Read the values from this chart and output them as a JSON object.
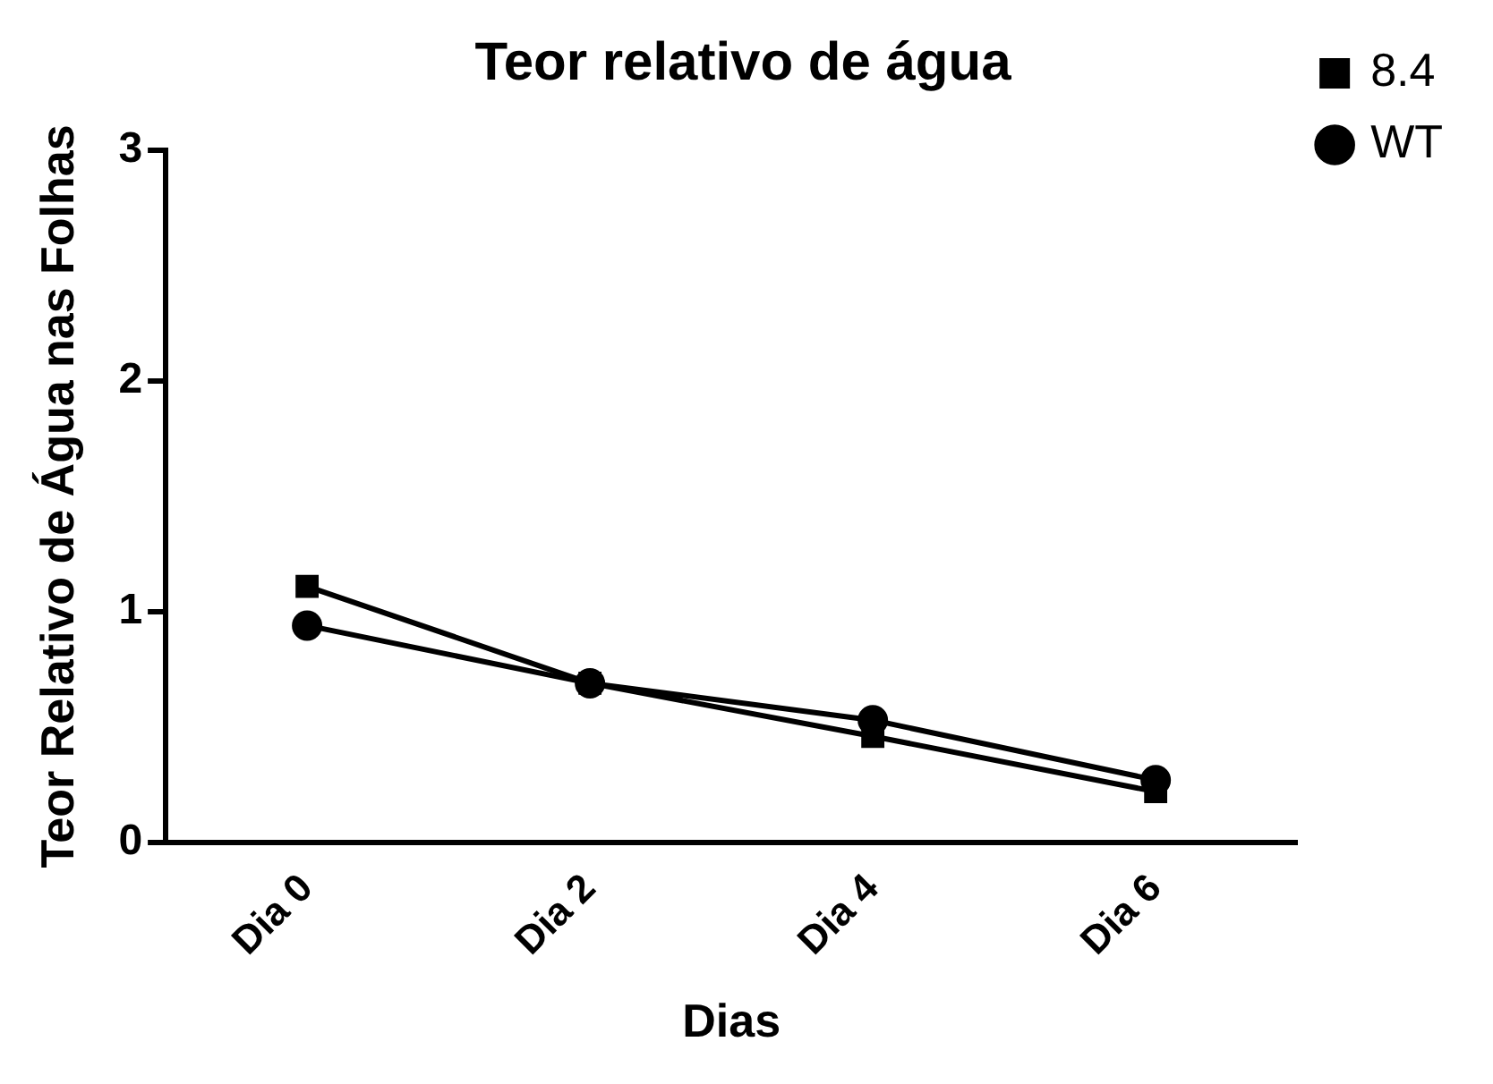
{
  "chart_data": {
    "type": "line",
    "title": "Teor relativo de água",
    "xlabel": "Dias",
    "ylabel": "Teor Relativo de Água nas Folhas",
    "categories": [
      "Dia 0",
      "Dia 2",
      "Dia 4",
      "Dia 6"
    ],
    "series": [
      {
        "name": "8.4",
        "color": "#000000",
        "marker": "square",
        "values": [
          1.11,
          0.69,
          0.46,
          0.22
        ]
      },
      {
        "name": "WT",
        "color": "#000000",
        "marker": "circle",
        "values": [
          0.94,
          0.69,
          0.53,
          0.27
        ]
      }
    ],
    "ylim": [
      0,
      3
    ],
    "yticks": [
      0,
      1,
      2,
      3
    ],
    "grid": false,
    "legend": "top right"
  }
}
